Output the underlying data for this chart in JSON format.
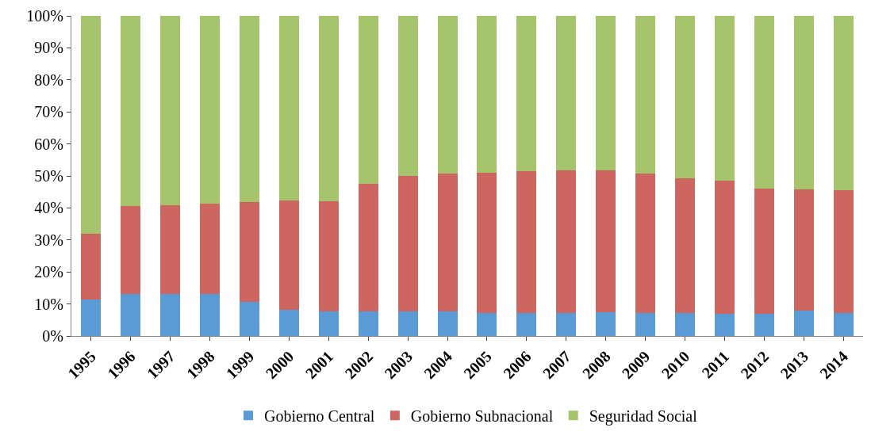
{
  "chart_data": {
    "type": "bar",
    "stacked": true,
    "legend": "bottom",
    "categories": [
      "1995",
      "1996",
      "1997",
      "1998",
      "1999",
      "2000",
      "2001",
      "2002",
      "2003",
      "2004",
      "2005",
      "2006",
      "2007",
      "2008",
      "2009",
      "2010",
      "2011",
      "2012",
      "2013",
      "2014"
    ],
    "series": [
      {
        "name": "Gobierno Central",
        "color": "#5b9bd5",
        "values": [
          11.5,
          13,
          13,
          13,
          10.7,
          8.2,
          7.7,
          7.7,
          7.7,
          7.7,
          7.3,
          7.3,
          7.3,
          7.5,
          7.3,
          7.3,
          7,
          7,
          8,
          7.3
        ]
      },
      {
        "name": "Gobierno Subnacional",
        "color": "#cd6660",
        "values": [
          20.5,
          27.5,
          27.8,
          28.4,
          31.2,
          34.1,
          34.4,
          39.8,
          42.3,
          43.1,
          43.8,
          44.3,
          44.5,
          44.3,
          43.5,
          41.9,
          41.4,
          39,
          37.7,
          38.2
        ]
      },
      {
        "name": "Seguridad Social",
        "color": "#a6c46c",
        "values": [
          68,
          59.5,
          59.2,
          58.6,
          58.1,
          57.7,
          57.9,
          52.5,
          50,
          49.2,
          48.9,
          48.4,
          48.2,
          48.2,
          49.2,
          50.8,
          51.6,
          54,
          54.3,
          54.5
        ]
      }
    ],
    "ylim": [
      0,
      100
    ],
    "yticks": [
      {
        "value": 0,
        "label": "0%"
      },
      {
        "value": 10,
        "label": "10%"
      },
      {
        "value": 20,
        "label": "20%"
      },
      {
        "value": 30,
        "label": "30%"
      },
      {
        "value": 40,
        "label": "40%"
      },
      {
        "value": 50,
        "label": "50%"
      },
      {
        "value": 60,
        "label": "60%"
      },
      {
        "value": 70,
        "label": "70%"
      },
      {
        "value": 80,
        "label": "80%"
      },
      {
        "value": 90,
        "label": "90%"
      },
      {
        "value": 100,
        "label": "100%"
      }
    ]
  }
}
